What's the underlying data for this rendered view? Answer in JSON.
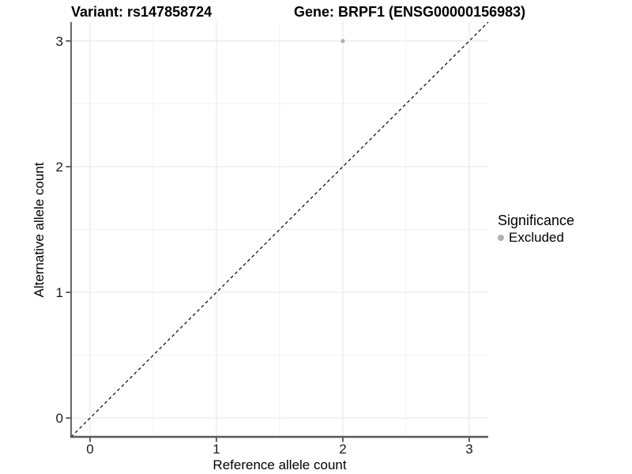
{
  "chart_data": {
    "type": "scatter",
    "title_left": "Variant: rs147858724",
    "title_right": "Gene: BRPF1 (ENSG00000156983)",
    "xlabel": "Reference allele count",
    "ylabel": "Alternative allele count",
    "xlim": [
      -0.15,
      3.15
    ],
    "ylim": [
      -0.15,
      3.15
    ],
    "x_ticks": [
      0,
      1,
      2,
      3
    ],
    "y_ticks": [
      0,
      1,
      2,
      3
    ],
    "x_minor_ticks": [
      0.5,
      1.5,
      2.5
    ],
    "y_minor_ticks": [
      0.5,
      1.5,
      2.5
    ],
    "grid": true,
    "series": [
      {
        "name": "Excluded",
        "color": "#b0b0b0",
        "points": [
          {
            "x": 2,
            "y": 3
          }
        ]
      }
    ],
    "reference_line": {
      "kind": "identity",
      "style": "dashed",
      "color": "#000000"
    }
  },
  "legend": {
    "title": "Significance",
    "position": "right",
    "items": [
      {
        "label": "Excluded",
        "color": "#b0b0b0",
        "marker": "circle"
      }
    ]
  },
  "colors": {
    "grid_major": "#e9e9e9",
    "grid_minor": "#f2f2f2",
    "axis_line_left": "#333333",
    "axis_line_bottom": "#595959",
    "tick_mark": "#333333",
    "tick_label": "#1a1a1a",
    "background": "#ffffff"
  }
}
